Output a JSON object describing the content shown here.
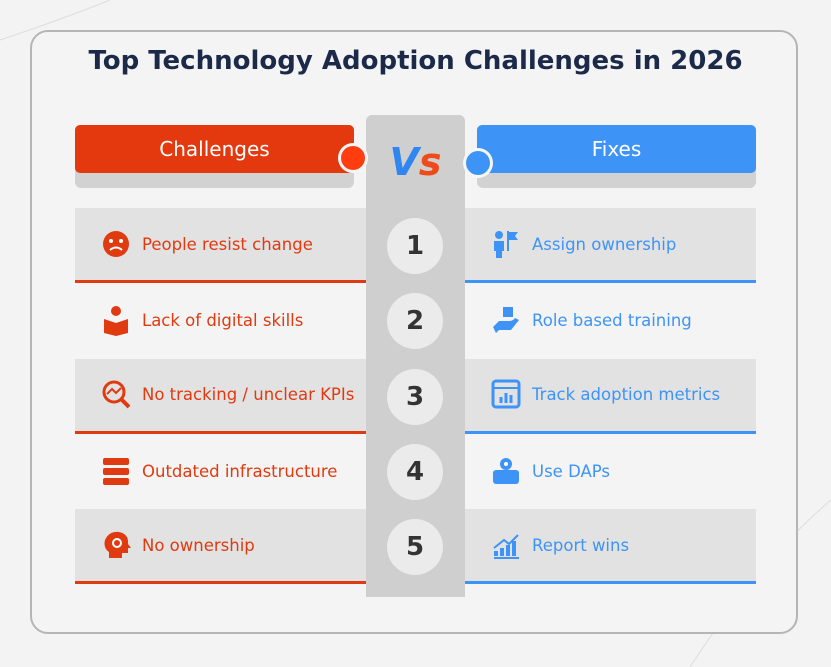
{
  "title": "Top Technology Adoption Challenges in 2026",
  "header": {
    "left": "Challenges",
    "middle": "Vs",
    "right": "Fixes"
  },
  "rows": [
    {
      "number": 1,
      "challenge": "People resist change",
      "fix": "Assign ownership"
    },
    {
      "number": 2,
      "challenge": "Lack of digital skills",
      "fix": "Role based training"
    },
    {
      "number": 3,
      "challenge": "No tracking / unclear KPIs",
      "fix": "Track adoption metrics"
    },
    {
      "number": 4,
      "challenge": "Outdated infrastructure",
      "fix": "Use DAPs"
    },
    {
      "number": 5,
      "challenge": "No ownership",
      "fix": "Report wins"
    }
  ]
}
